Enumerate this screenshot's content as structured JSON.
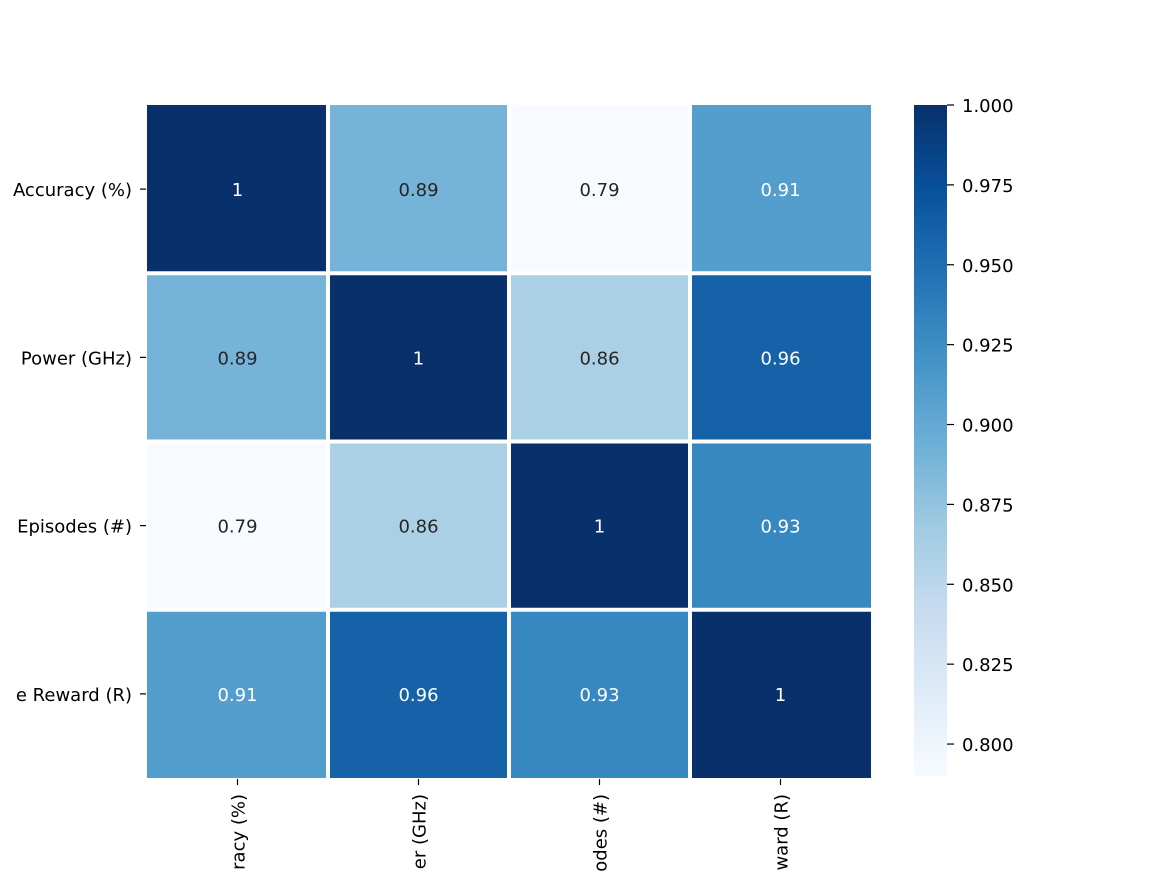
{
  "chart_data": {
    "type": "heatmap",
    "title": "",
    "row_labels": [
      "Accuracy (%)",
      "Power (GHz)",
      "Episodes (#)",
      "e Reward (R)"
    ],
    "col_labels": [
      "racy (%)",
      "er (GHz)",
      "odes (#)",
      "ward (R)"
    ],
    "values": [
      [
        1.0,
        0.89,
        0.79,
        0.91
      ],
      [
        0.89,
        1.0,
        0.86,
        0.96
      ],
      [
        0.79,
        0.86,
        1.0,
        0.93
      ],
      [
        0.91,
        0.96,
        0.93,
        1.0
      ]
    ],
    "cell_labels": [
      [
        "1",
        "0.89",
        "0.79",
        "0.91"
      ],
      [
        "0.89",
        "1",
        "0.86",
        "0.96"
      ],
      [
        "0.79",
        "0.86",
        "1",
        "0.93"
      ],
      [
        "0.91",
        "0.96",
        "0.93",
        "1"
      ]
    ],
    "colormap": "Blues",
    "color_range": [
      0.79,
      1.0
    ],
    "colorbar_ticks": [
      "1.000",
      "0.975",
      "0.950",
      "0.925",
      "0.900",
      "0.875",
      "0.850",
      "0.825",
      "0.800"
    ],
    "colorbar_tick_values": [
      1.0,
      0.975,
      0.95,
      0.925,
      0.9,
      0.875,
      0.85,
      0.825,
      0.8
    ],
    "grid": false
  }
}
